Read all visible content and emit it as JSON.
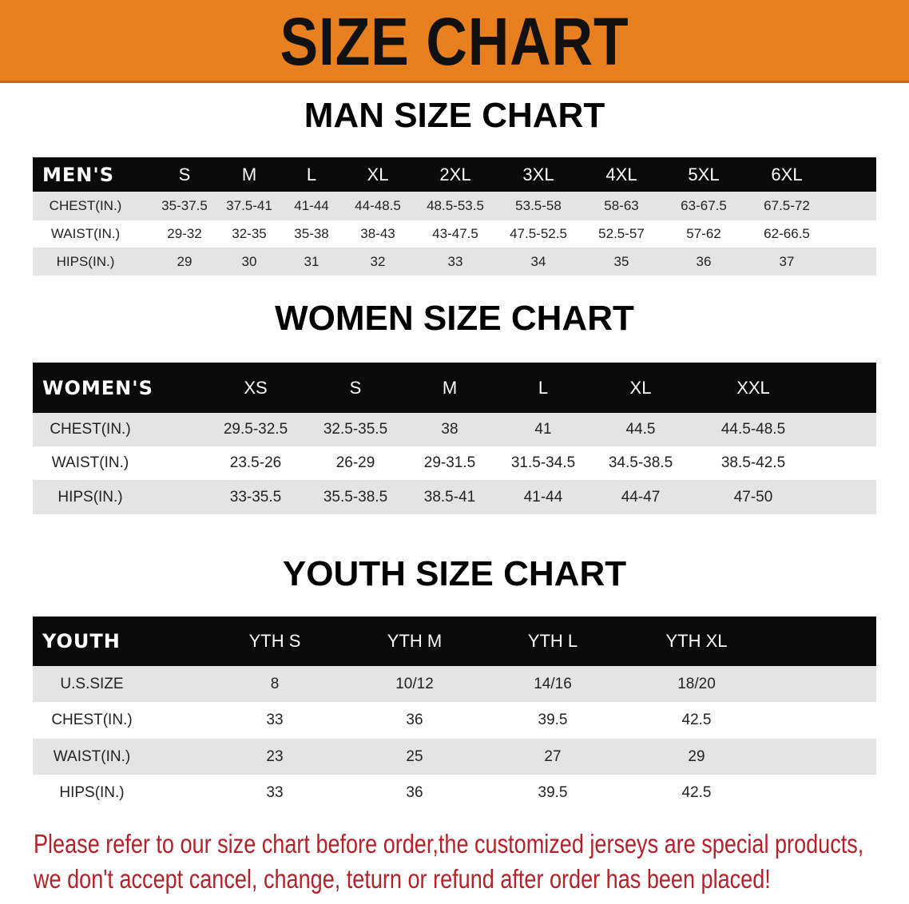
{
  "banner": {
    "title": "SIZE CHART",
    "color": "#e8801f"
  },
  "men": {
    "title": "MAN SIZE CHART",
    "header": [
      "MEN'S",
      "S",
      "M",
      "L",
      "XL",
      "2XL",
      "3XL",
      "4XL",
      "5XL",
      "6XL"
    ],
    "rows": [
      [
        "CHEST(IN.)",
        "35-37.5",
        "37.5-41",
        "41-44",
        "44-48.5",
        "48.5-53.5",
        "53.5-58",
        "58-63",
        "63-67.5",
        "67.5-72"
      ],
      [
        "WAIST(IN.)",
        "29-32",
        "32-35",
        "35-38",
        "38-43",
        "43-47.5",
        "47.5-52.5",
        "52.5-57",
        "57-62",
        "62-66.5"
      ],
      [
        "HIPS(IN.)",
        "29",
        "30",
        "31",
        "32",
        "33",
        "34",
        "35",
        "36",
        "37"
      ]
    ]
  },
  "women": {
    "title": "WOMEN SIZE CHART",
    "header": [
      "WOMEN'S",
      "XS",
      "S",
      "M",
      "L",
      "XL",
      "XXL"
    ],
    "rows": [
      [
        "CHEST(IN.)",
        "29.5-32.5",
        "32.5-35.5",
        "38",
        "41",
        "44.5",
        "44.5-48.5"
      ],
      [
        "WAIST(IN.)",
        "23.5-26",
        "26-29",
        "29-31.5",
        "31.5-34.5",
        "34.5-38.5",
        "38.5-42.5"
      ],
      [
        "HIPS(IN.)",
        "33-35.5",
        "35.5-38.5",
        "38.5-41",
        "41-44",
        "44-47",
        "47-50"
      ]
    ]
  },
  "youth": {
    "title": "YOUTH SIZE CHART",
    "header": [
      "YOUTH",
      "YTH S",
      "YTH M",
      "YTH L",
      "YTH XL"
    ],
    "rows": [
      [
        "U.S.SIZE",
        "8",
        "10/12",
        "14/16",
        "18/20"
      ],
      [
        "CHEST(IN.)",
        "33",
        "36",
        "39.5",
        "42.5"
      ],
      [
        "WAIST(IN.)",
        "23",
        "25",
        "27",
        "29"
      ],
      [
        "HIPS(IN.)",
        "33",
        "36",
        "39.5",
        "42.5"
      ]
    ]
  },
  "notice": {
    "line1": "Please refer to our size chart before order,the customized jerseys are special products,",
    "line2": "we don't accept cancel, change, teturn or refund after order has been placed!",
    "color": "#b3222a"
  }
}
